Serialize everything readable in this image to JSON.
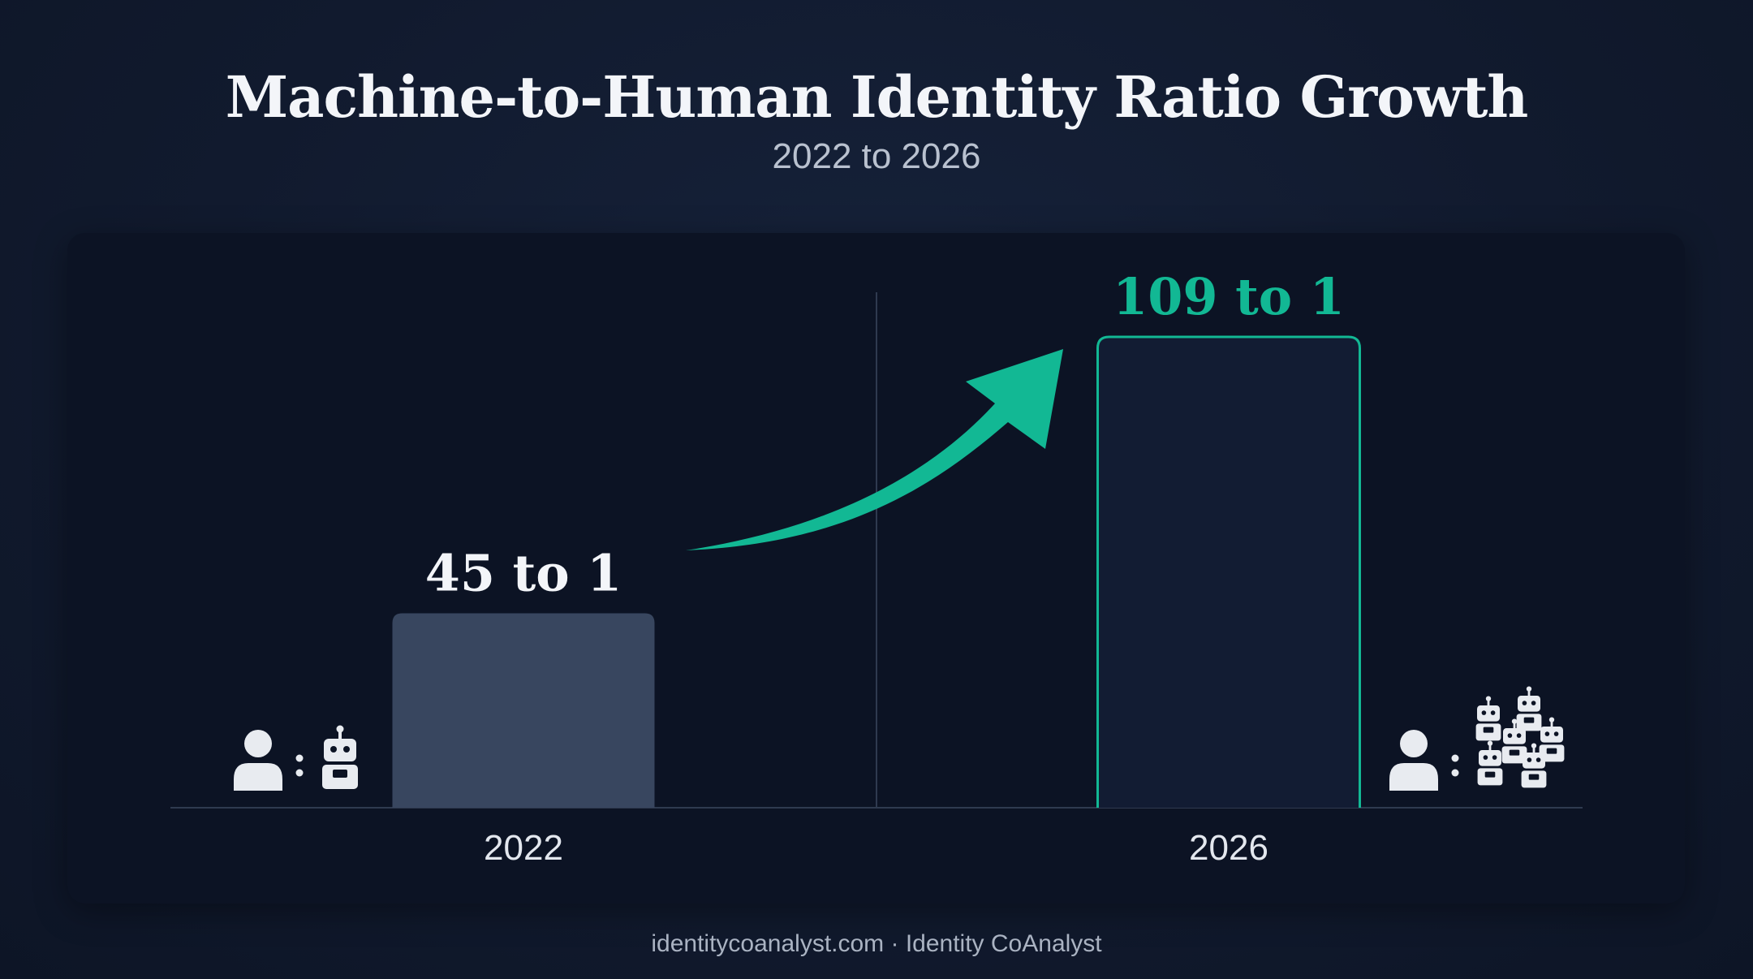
{
  "title": "Machine-to-Human Identity Ratio Growth",
  "subtitle": "2022 to 2026",
  "footer": "identitycoanalyst.com · Identity CoAnalyst",
  "colors": {
    "bar_2022": "#38465f",
    "bar_2026_fill": "#121c33",
    "bar_2026_outline": "#12b894",
    "accent": "#12b894",
    "label_light": "#f3f5f9",
    "axis": "#2f3a4f",
    "icon": "#e8ebf0"
  },
  "icons": {
    "human": "person-icon",
    "machine": "robot-icon",
    "machines": "robot-group-icon",
    "trend": "trend-arrow-icon"
  },
  "chart_data": {
    "type": "bar",
    "title": "Machine-to-Human Identity Ratio Growth",
    "subtitle": "2022 to 2026",
    "categories": [
      "2022",
      "2026"
    ],
    "values": [
      45,
      109
    ],
    "data_labels": [
      "45 to 1",
      "109 to 1"
    ],
    "xlabel": "",
    "ylabel": "",
    "ylim": [
      0,
      109
    ],
    "grid": false,
    "legend": "none"
  }
}
